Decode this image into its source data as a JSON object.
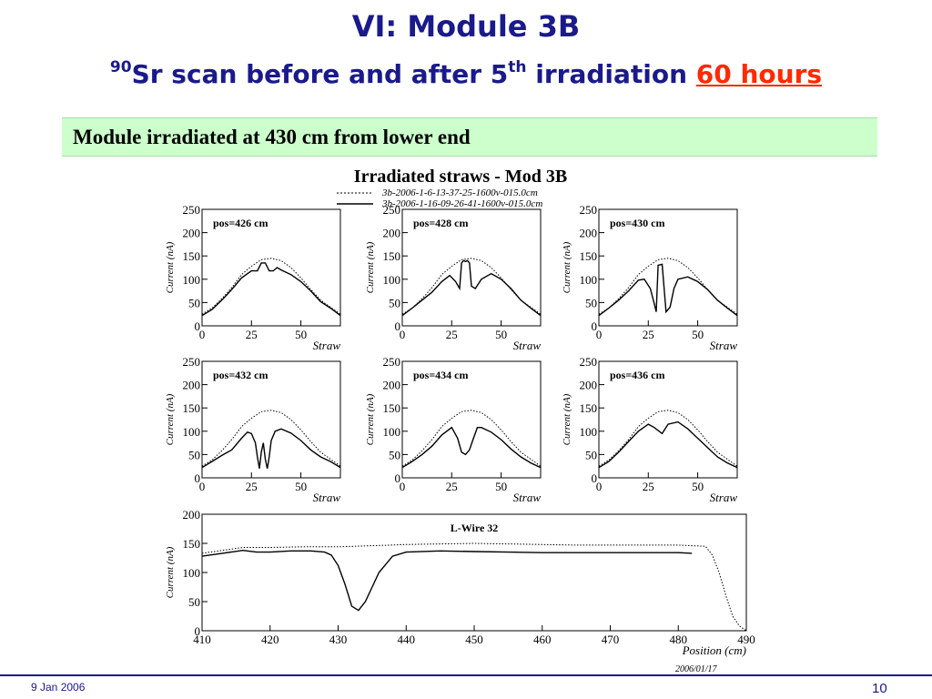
{
  "slide": {
    "title": "VI: Module 3B",
    "subtitle_sup": "90",
    "subtitle_a": "Sr scan before and after 5",
    "subtitle_sup2": "th",
    "subtitle_b": " irradiation ",
    "subtitle_highlight": "60 hours",
    "banner": "Module irradiated at 430 cm from lower end",
    "footer_date": "9 Jan 2006",
    "page_number": "10",
    "colors": {
      "title": "#1a1a8c",
      "highlight": "#ff2a00",
      "banner_bg": "#ccffcc"
    }
  },
  "figure": {
    "title": "Irradiated straws - Mod 3B",
    "legend": [
      {
        "label": "3b-2006-1-6-13-37-25-1600v-015.0cm",
        "style": "dotted"
      },
      {
        "label": "3b-2006-1-16-09-26-41-1600v-015.0cm",
        "style": "solid"
      }
    ],
    "stamp": "2006/01/17"
  },
  "chart_data": [
    {
      "type": "line",
      "title": "pos=426 cm",
      "xlabel": "Straw",
      "ylabel": "Current (nA)",
      "xlim": [
        0,
        70
      ],
      "ylim": [
        0,
        250
      ],
      "xticks": [
        0,
        25,
        50
      ],
      "yticks": [
        0,
        50,
        100,
        150,
        200,
        250
      ],
      "series": [
        {
          "style": "dotted",
          "x": [
            0,
            5,
            10,
            15,
            20,
            25,
            30,
            35,
            40,
            45,
            50,
            55,
            60,
            65,
            70
          ],
          "y": [
            25,
            38,
            58,
            82,
            110,
            128,
            142,
            145,
            140,
            125,
            103,
            78,
            55,
            40,
            25
          ]
        },
        {
          "style": "solid",
          "x": [
            0,
            5,
            10,
            15,
            20,
            25,
            28,
            30,
            32,
            34,
            36,
            38,
            40,
            45,
            50,
            55,
            60,
            65,
            70
          ],
          "y": [
            22,
            35,
            55,
            78,
            103,
            118,
            118,
            135,
            135,
            118,
            118,
            125,
            120,
            110,
            95,
            75,
            52,
            38,
            22
          ]
        }
      ]
    },
    {
      "type": "line",
      "title": "pos=428 cm",
      "xlabel": "Straw",
      "ylabel": "Current (nA)",
      "xlim": [
        0,
        70
      ],
      "ylim": [
        0,
        250
      ],
      "xticks": [
        0,
        25,
        50
      ],
      "yticks": [
        0,
        50,
        100,
        150,
        200,
        250
      ],
      "series": [
        {
          "style": "dotted",
          "x": [
            0,
            5,
            10,
            15,
            20,
            25,
            30,
            35,
            40,
            45,
            50,
            55,
            60,
            65,
            70
          ],
          "y": [
            25,
            38,
            58,
            82,
            110,
            128,
            142,
            145,
            140,
            125,
            103,
            78,
            55,
            40,
            25
          ]
        },
        {
          "style": "solid",
          "x": [
            0,
            5,
            10,
            15,
            20,
            24,
            27,
            29,
            30,
            31,
            32,
            33,
            34,
            35,
            37,
            40,
            45,
            50,
            55,
            60,
            65,
            70
          ],
          "y": [
            22,
            38,
            55,
            72,
            95,
            108,
            95,
            80,
            135,
            140,
            138,
            140,
            135,
            85,
            80,
            100,
            112,
            100,
            80,
            55,
            38,
            22
          ]
        }
      ]
    },
    {
      "type": "line",
      "title": "pos=430 cm",
      "xlabel": "Straw",
      "ylabel": "Current (nA)",
      "xlim": [
        0,
        70
      ],
      "ylim": [
        0,
        250
      ],
      "xticks": [
        0,
        25,
        50
      ],
      "yticks": [
        0,
        50,
        100,
        150,
        200,
        250
      ],
      "series": [
        {
          "style": "dotted",
          "x": [
            0,
            5,
            10,
            15,
            20,
            25,
            30,
            35,
            40,
            45,
            50,
            55,
            60,
            65,
            70
          ],
          "y": [
            25,
            38,
            58,
            82,
            110,
            128,
            142,
            145,
            140,
            125,
            103,
            78,
            55,
            40,
            25
          ]
        },
        {
          "style": "solid",
          "x": [
            0,
            5,
            10,
            15,
            20,
            23,
            26,
            28,
            29,
            30,
            32,
            33,
            34,
            36,
            38,
            40,
            45,
            50,
            55,
            60,
            65,
            70
          ],
          "y": [
            22,
            38,
            55,
            75,
            98,
            100,
            80,
            48,
            30,
            130,
            132,
            80,
            30,
            40,
            80,
            100,
            105,
            95,
            78,
            55,
            38,
            22
          ]
        }
      ]
    },
    {
      "type": "line",
      "title": "pos=432 cm",
      "xlabel": "Straw",
      "ylabel": "Current (nA)",
      "xlim": [
        0,
        70
      ],
      "ylim": [
        0,
        250
      ],
      "xticks": [
        0,
        25,
        50
      ],
      "yticks": [
        0,
        50,
        100,
        150,
        200,
        250
      ],
      "series": [
        {
          "style": "dotted",
          "x": [
            0,
            5,
            10,
            15,
            20,
            25,
            30,
            35,
            40,
            45,
            50,
            55,
            60,
            65,
            70
          ],
          "y": [
            25,
            38,
            58,
            82,
            110,
            128,
            142,
            145,
            140,
            125,
            103,
            78,
            55,
            40,
            25
          ]
        },
        {
          "style": "solid",
          "x": [
            0,
            5,
            10,
            15,
            20,
            23,
            25,
            27,
            28,
            29,
            30,
            31,
            32,
            33,
            34,
            35,
            37,
            40,
            45,
            50,
            55,
            60,
            65,
            70
          ],
          "y": [
            22,
            35,
            48,
            60,
            85,
            98,
            95,
            75,
            45,
            20,
            55,
            75,
            40,
            20,
            45,
            80,
            100,
            105,
            96,
            80,
            60,
            45,
            35,
            22
          ]
        }
      ]
    },
    {
      "type": "line",
      "title": "pos=434 cm",
      "xlabel": "Straw",
      "ylabel": "Current (nA)",
      "xlim": [
        0,
        70
      ],
      "ylim": [
        0,
        250
      ],
      "xticks": [
        0,
        25,
        50
      ],
      "yticks": [
        0,
        50,
        100,
        150,
        200,
        250
      ],
      "series": [
        {
          "style": "dotted",
          "x": [
            0,
            5,
            10,
            15,
            20,
            25,
            30,
            35,
            40,
            45,
            50,
            55,
            60,
            65,
            70
          ],
          "y": [
            25,
            38,
            58,
            82,
            110,
            128,
            142,
            145,
            140,
            125,
            103,
            78,
            55,
            40,
            25
          ]
        },
        {
          "style": "solid",
          "x": [
            0,
            5,
            10,
            15,
            20,
            25,
            28,
            30,
            32,
            34,
            36,
            38,
            40,
            45,
            50,
            55,
            60,
            65,
            70
          ],
          "y": [
            22,
            35,
            50,
            68,
            92,
            108,
            85,
            55,
            50,
            60,
            85,
            108,
            108,
            98,
            82,
            62,
            45,
            32,
            22
          ]
        }
      ]
    },
    {
      "type": "line",
      "title": "pos=436 cm",
      "xlabel": "Straw",
      "ylabel": "Current (nA)",
      "xlim": [
        0,
        70
      ],
      "ylim": [
        0,
        250
      ],
      "xticks": [
        0,
        25,
        50
      ],
      "yticks": [
        0,
        50,
        100,
        150,
        200,
        250
      ],
      "series": [
        {
          "style": "dotted",
          "x": [
            0,
            5,
            10,
            15,
            20,
            25,
            30,
            35,
            40,
            45,
            50,
            55,
            60,
            65,
            70
          ],
          "y": [
            25,
            38,
            58,
            82,
            110,
            128,
            142,
            145,
            140,
            125,
            103,
            78,
            55,
            40,
            25
          ]
        },
        {
          "style": "solid",
          "x": [
            0,
            5,
            10,
            15,
            20,
            25,
            28,
            32,
            35,
            40,
            45,
            50,
            55,
            60,
            65,
            70
          ],
          "y": [
            22,
            35,
            55,
            78,
            100,
            115,
            108,
            95,
            115,
            120,
            105,
            85,
            65,
            45,
            32,
            22
          ]
        }
      ]
    },
    {
      "type": "line",
      "title": "L-Wire 32",
      "xlabel": "Position (cm)",
      "ylabel": "Current (nA)",
      "xlim": [
        410,
        490
      ],
      "ylim": [
        0,
        200
      ],
      "xticks": [
        410,
        420,
        430,
        440,
        450,
        460,
        470,
        480,
        490
      ],
      "yticks": [
        0,
        50,
        100,
        150,
        200
      ],
      "series": [
        {
          "style": "dotted",
          "x": [
            410,
            413,
            416,
            420,
            425,
            430,
            435,
            440,
            445,
            450,
            455,
            460,
            465,
            470,
            475,
            480,
            484,
            485,
            486,
            487,
            488,
            489,
            490
          ],
          "y": [
            133,
            138,
            143,
            143,
            144,
            144,
            146,
            148,
            149,
            150,
            149,
            148,
            147,
            147,
            147,
            147,
            145,
            130,
            100,
            60,
            25,
            8,
            0
          ]
        },
        {
          "style": "solid",
          "x": [
            410,
            413,
            416,
            418,
            420,
            423,
            426,
            428,
            429,
            430,
            431,
            432,
            433,
            434,
            435,
            436,
            438,
            440,
            445,
            450,
            455,
            460,
            465,
            470,
            475,
            480,
            482
          ],
          "y": [
            128,
            133,
            138,
            135,
            135,
            137,
            137,
            135,
            130,
            112,
            80,
            42,
            35,
            50,
            75,
            100,
            128,
            135,
            137,
            136,
            135,
            134,
            134,
            134,
            134,
            134,
            133
          ]
        }
      ]
    }
  ]
}
